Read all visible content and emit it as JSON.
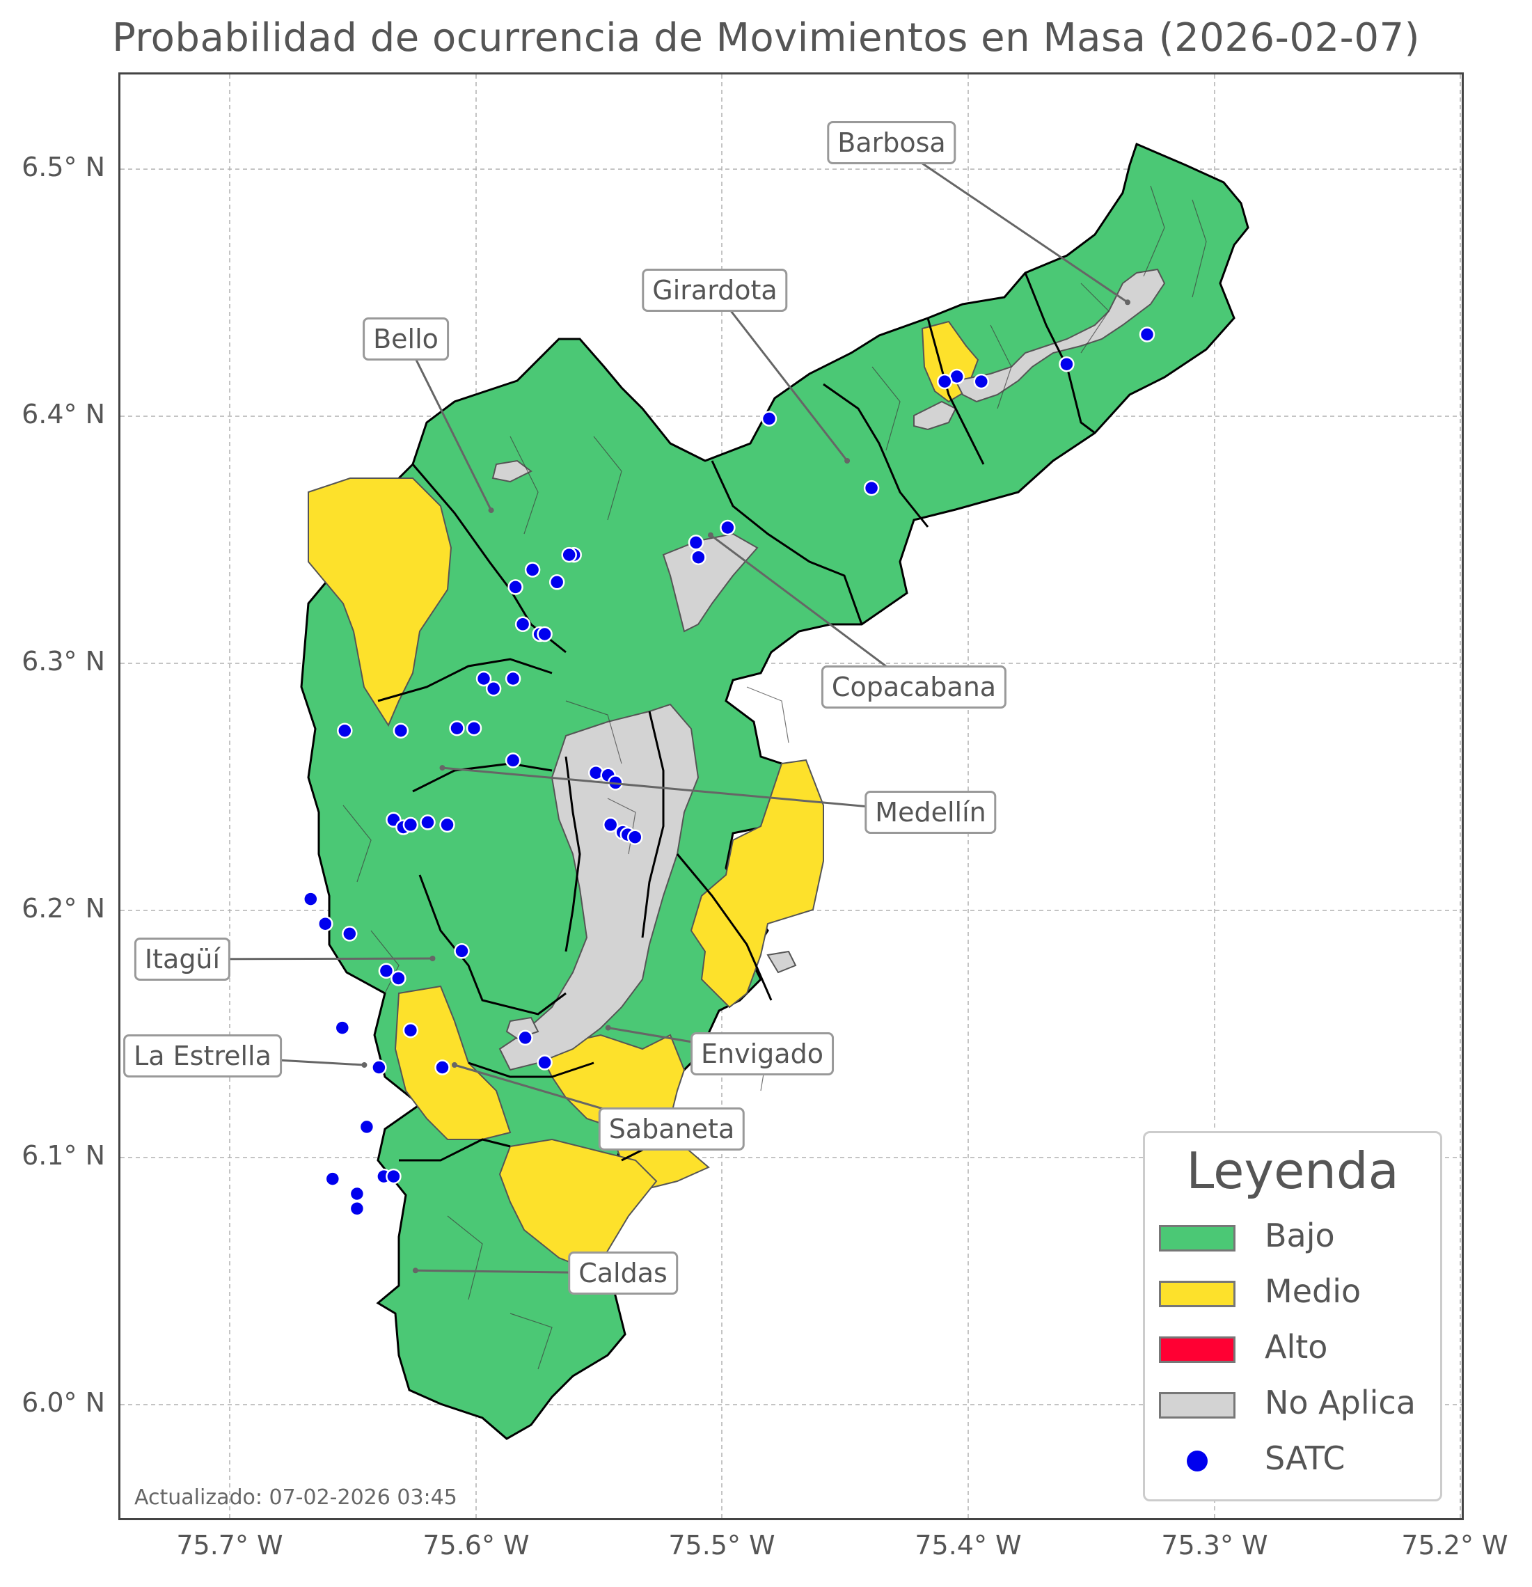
{
  "title": "Probabilidad de ocurrencia de Movimientos en Masa (2026-02-07)",
  "updated": "Actualizado: 07-02-2026 03:45",
  "axes": {
    "y_ticks": [
      "6.5° N",
      "6.4° N",
      "6.3° N",
      "6.2° N",
      "6.1° N",
      "6.0° N"
    ],
    "x_ticks": [
      "75.7° W",
      "75.6° W",
      "75.5° W",
      "75.4° W",
      "75.3° W",
      "75.2° W"
    ],
    "lon_range": [
      -75.745,
      -75.195
    ],
    "lat_range": [
      5.955,
      6.538
    ],
    "grid": true
  },
  "colors": {
    "bajo": "#4bc875",
    "medio": "#fde12b",
    "alto": "#ff0033",
    "no_aplica": "#d3d3d3",
    "satc": "#0000ee"
  },
  "legend": {
    "title": "Leyenda",
    "items": [
      {
        "label": "Bajo",
        "kind": "swatch",
        "color": "#4bc875"
      },
      {
        "label": "Medio",
        "kind": "swatch",
        "color": "#fde12b"
      },
      {
        "label": "Alto",
        "kind": "swatch",
        "color": "#ff0033"
      },
      {
        "label": "No Aplica",
        "kind": "swatch",
        "color": "#d3d3d3"
      },
      {
        "label": "SATC",
        "kind": "dot",
        "color": "#0000ee"
      }
    ]
  },
  "municipalities": [
    {
      "name": "Barbosa",
      "lon": -75.332,
      "lat": 6.446
    },
    {
      "name": "Girardota",
      "lon": -75.447,
      "lat": 6.382
    },
    {
      "name": "Bello",
      "lon": -75.593,
      "lat": 6.362
    },
    {
      "name": "Copacabana",
      "lon": -75.503,
      "lat": 6.352
    },
    {
      "name": "Medellín",
      "lon": -75.613,
      "lat": 6.258
    },
    {
      "name": "Itagüí",
      "lon": -75.617,
      "lat": 6.181
    },
    {
      "name": "Envigado",
      "lon": -75.545,
      "lat": 6.153
    },
    {
      "name": "La Estrella",
      "lon": -75.645,
      "lat": 6.138
    },
    {
      "name": "Sabaneta",
      "lon": -75.608,
      "lat": 6.138
    },
    {
      "name": "Caldas",
      "lon": -75.624,
      "lat": 6.055
    }
  ],
  "satc_stations": [
    [
      -75.324,
      6.433
    ],
    [
      -75.357,
      6.421
    ],
    [
      -75.392,
      6.414
    ],
    [
      -75.402,
      6.416
    ],
    [
      -75.407,
      6.414
    ],
    [
      -75.479,
      6.399
    ],
    [
      -75.437,
      6.371
    ],
    [
      -75.496,
      6.355
    ],
    [
      -75.509,
      6.349
    ],
    [
      -75.508,
      6.343
    ],
    [
      -75.559,
      6.344
    ],
    [
      -75.561,
      6.344
    ],
    [
      -75.566,
      6.333
    ],
    [
      -75.576,
      6.338
    ],
    [
      -75.583,
      6.331
    ],
    [
      -75.58,
      6.316
    ],
    [
      -75.573,
      6.312
    ],
    [
      -75.571,
      6.312
    ],
    [
      -75.596,
      6.294
    ],
    [
      -75.592,
      6.29
    ],
    [
      -75.584,
      6.294
    ],
    [
      -75.653,
      6.273
    ],
    [
      -75.63,
      6.273
    ],
    [
      -75.607,
      6.274
    ],
    [
      -75.6,
      6.274
    ],
    [
      -75.584,
      6.261
    ],
    [
      -75.55,
      6.256
    ],
    [
      -75.545,
      6.255
    ],
    [
      -75.542,
      6.252
    ],
    [
      -75.544,
      6.235
    ],
    [
      -75.539,
      6.232
    ],
    [
      -75.537,
      6.231
    ],
    [
      -75.534,
      6.23
    ],
    [
      -75.633,
      6.237
    ],
    [
      -75.629,
      6.234
    ],
    [
      -75.626,
      6.235
    ],
    [
      -75.619,
      6.236
    ],
    [
      -75.611,
      6.235
    ],
    [
      -75.667,
      6.205
    ],
    [
      -75.661,
      6.195
    ],
    [
      -75.651,
      6.191
    ],
    [
      -75.605,
      6.184
    ],
    [
      -75.636,
      6.176
    ],
    [
      -75.631,
      6.173
    ],
    [
      -75.654,
      6.153
    ],
    [
      -75.626,
      6.152
    ],
    [
      -75.579,
      6.149
    ],
    [
      -75.571,
      6.139
    ],
    [
      -75.613,
      6.137
    ],
    [
      -75.639,
      6.137
    ],
    [
      -75.644,
      6.113
    ],
    [
      -75.658,
      6.092
    ],
    [
      -75.637,
      6.093
    ],
    [
      -75.633,
      6.093
    ],
    [
      -75.648,
      6.086
    ],
    [
      -75.648,
      6.08
    ]
  ]
}
